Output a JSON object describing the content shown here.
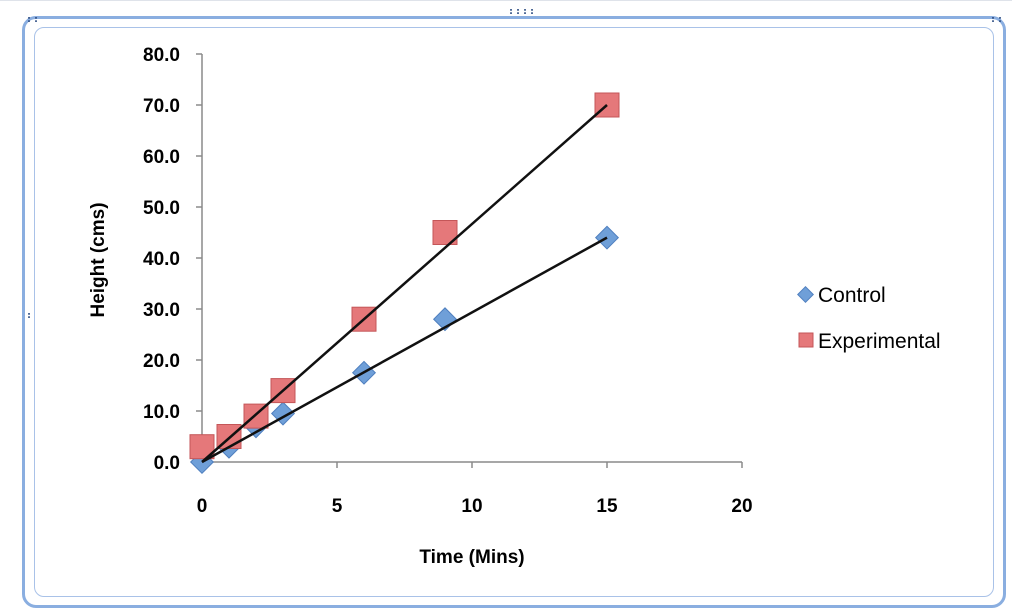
{
  "chart_data": {
    "type": "scatter",
    "title": "",
    "xlabel": "Time (Mins)",
    "ylabel": "Height (cms)",
    "xlim": [
      0,
      20
    ],
    "ylim": [
      0,
      80
    ],
    "x_ticks": [
      "0",
      "5",
      "10",
      "15",
      "20"
    ],
    "y_ticks": [
      "0.0",
      "10.0",
      "20.0",
      "30.0",
      "40.0",
      "50.0",
      "60.0",
      "70.0",
      "80.0"
    ],
    "grid": false,
    "legend_position": "right",
    "series": [
      {
        "name": "Control",
        "marker": "diamond",
        "color": "#6f9fd8",
        "x": [
          0,
          1,
          2,
          3,
          6,
          9,
          15
        ],
        "y": [
          0,
          3,
          7,
          9.5,
          17.5,
          28,
          44
        ],
        "trendline": {
          "x": [
            0,
            15
          ],
          "y": [
            0,
            44
          ]
        }
      },
      {
        "name": "Experimental",
        "marker": "square",
        "color": "#e5787a",
        "x": [
          0,
          1,
          2,
          3,
          6,
          9,
          15
        ],
        "y": [
          3,
          5,
          9,
          14,
          28,
          45,
          70
        ],
        "trendline": {
          "x": [
            0,
            15
          ],
          "y": [
            0,
            70
          ]
        }
      }
    ]
  },
  "colors": {
    "frame_border": "#8aaee0",
    "trendline": "#111111"
  }
}
